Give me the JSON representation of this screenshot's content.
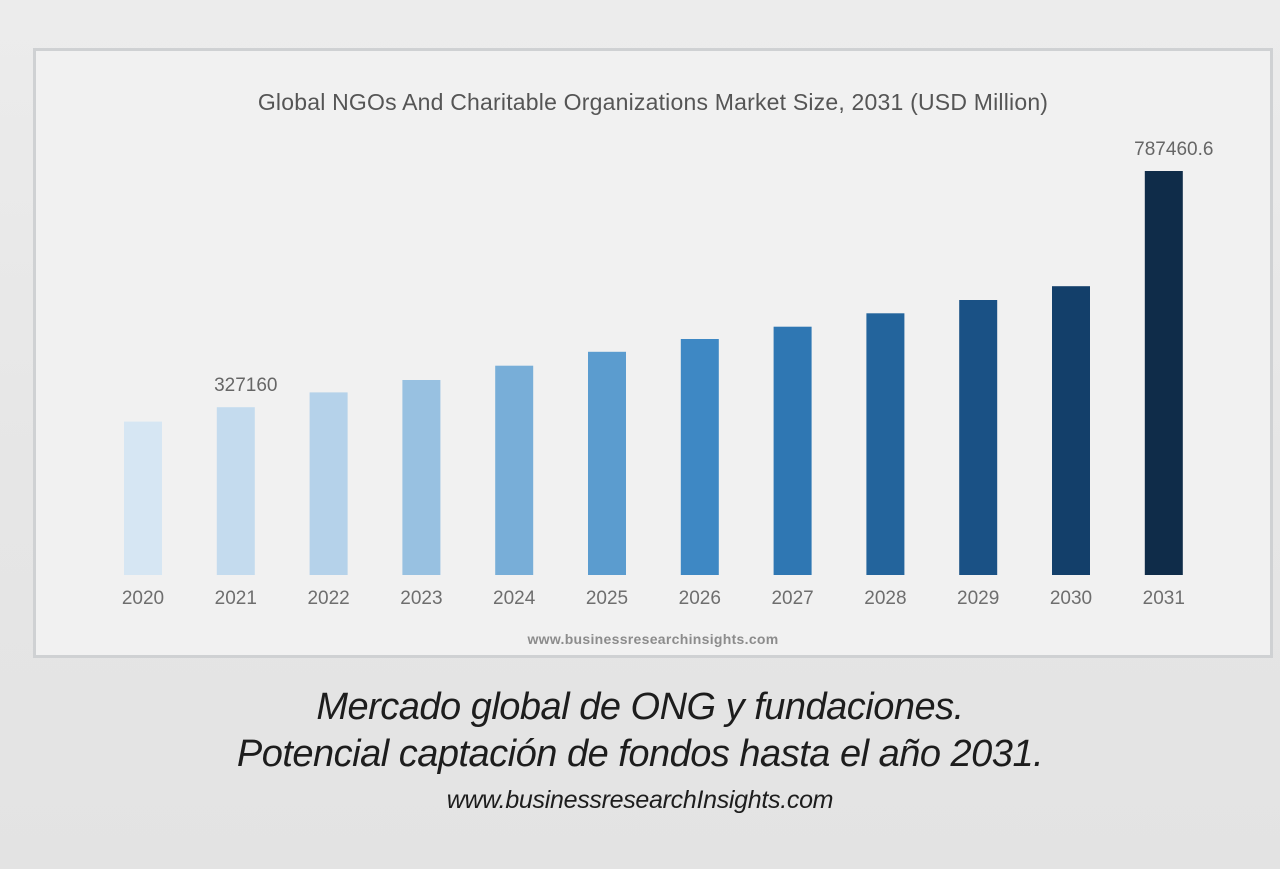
{
  "chart_data": {
    "type": "bar",
    "title": "Global NGOs And Charitable Organizations Market Size, 2031 (USD Million)",
    "source": "www.businessresearchinsights.com",
    "categories": [
      "2020",
      "2021",
      "2022",
      "2023",
      "2024",
      "2025",
      "2026",
      "2027",
      "2028",
      "2029",
      "2030",
      "2031"
    ],
    "values": [
      299000,
      327160,
      356000,
      380000,
      408000,
      435000,
      460000,
      484000,
      510000,
      536000,
      563000,
      787460.6
    ],
    "data_labels": [
      {
        "index": 1,
        "text": "327160"
      },
      {
        "index": 11,
        "text": "787460.6"
      }
    ],
    "colors": [
      "#d6e6f3",
      "#c4dbee",
      "#b5d2ea",
      "#98c1e1",
      "#78aed8",
      "#5b9ccf",
      "#3e88c4",
      "#2f77b3",
      "#23649c",
      "#1a5185",
      "#133f6a",
      "#0f2c49"
    ],
    "ylim": [
      0,
      787460.6
    ],
    "grid": false,
    "legend": "none"
  },
  "caption": {
    "line1": "Mercado global de ONG y fundaciones.",
    "line2": "Potencial captación de fondos hasta el año 2031.",
    "url": "www.businessresearchInsights.com"
  }
}
